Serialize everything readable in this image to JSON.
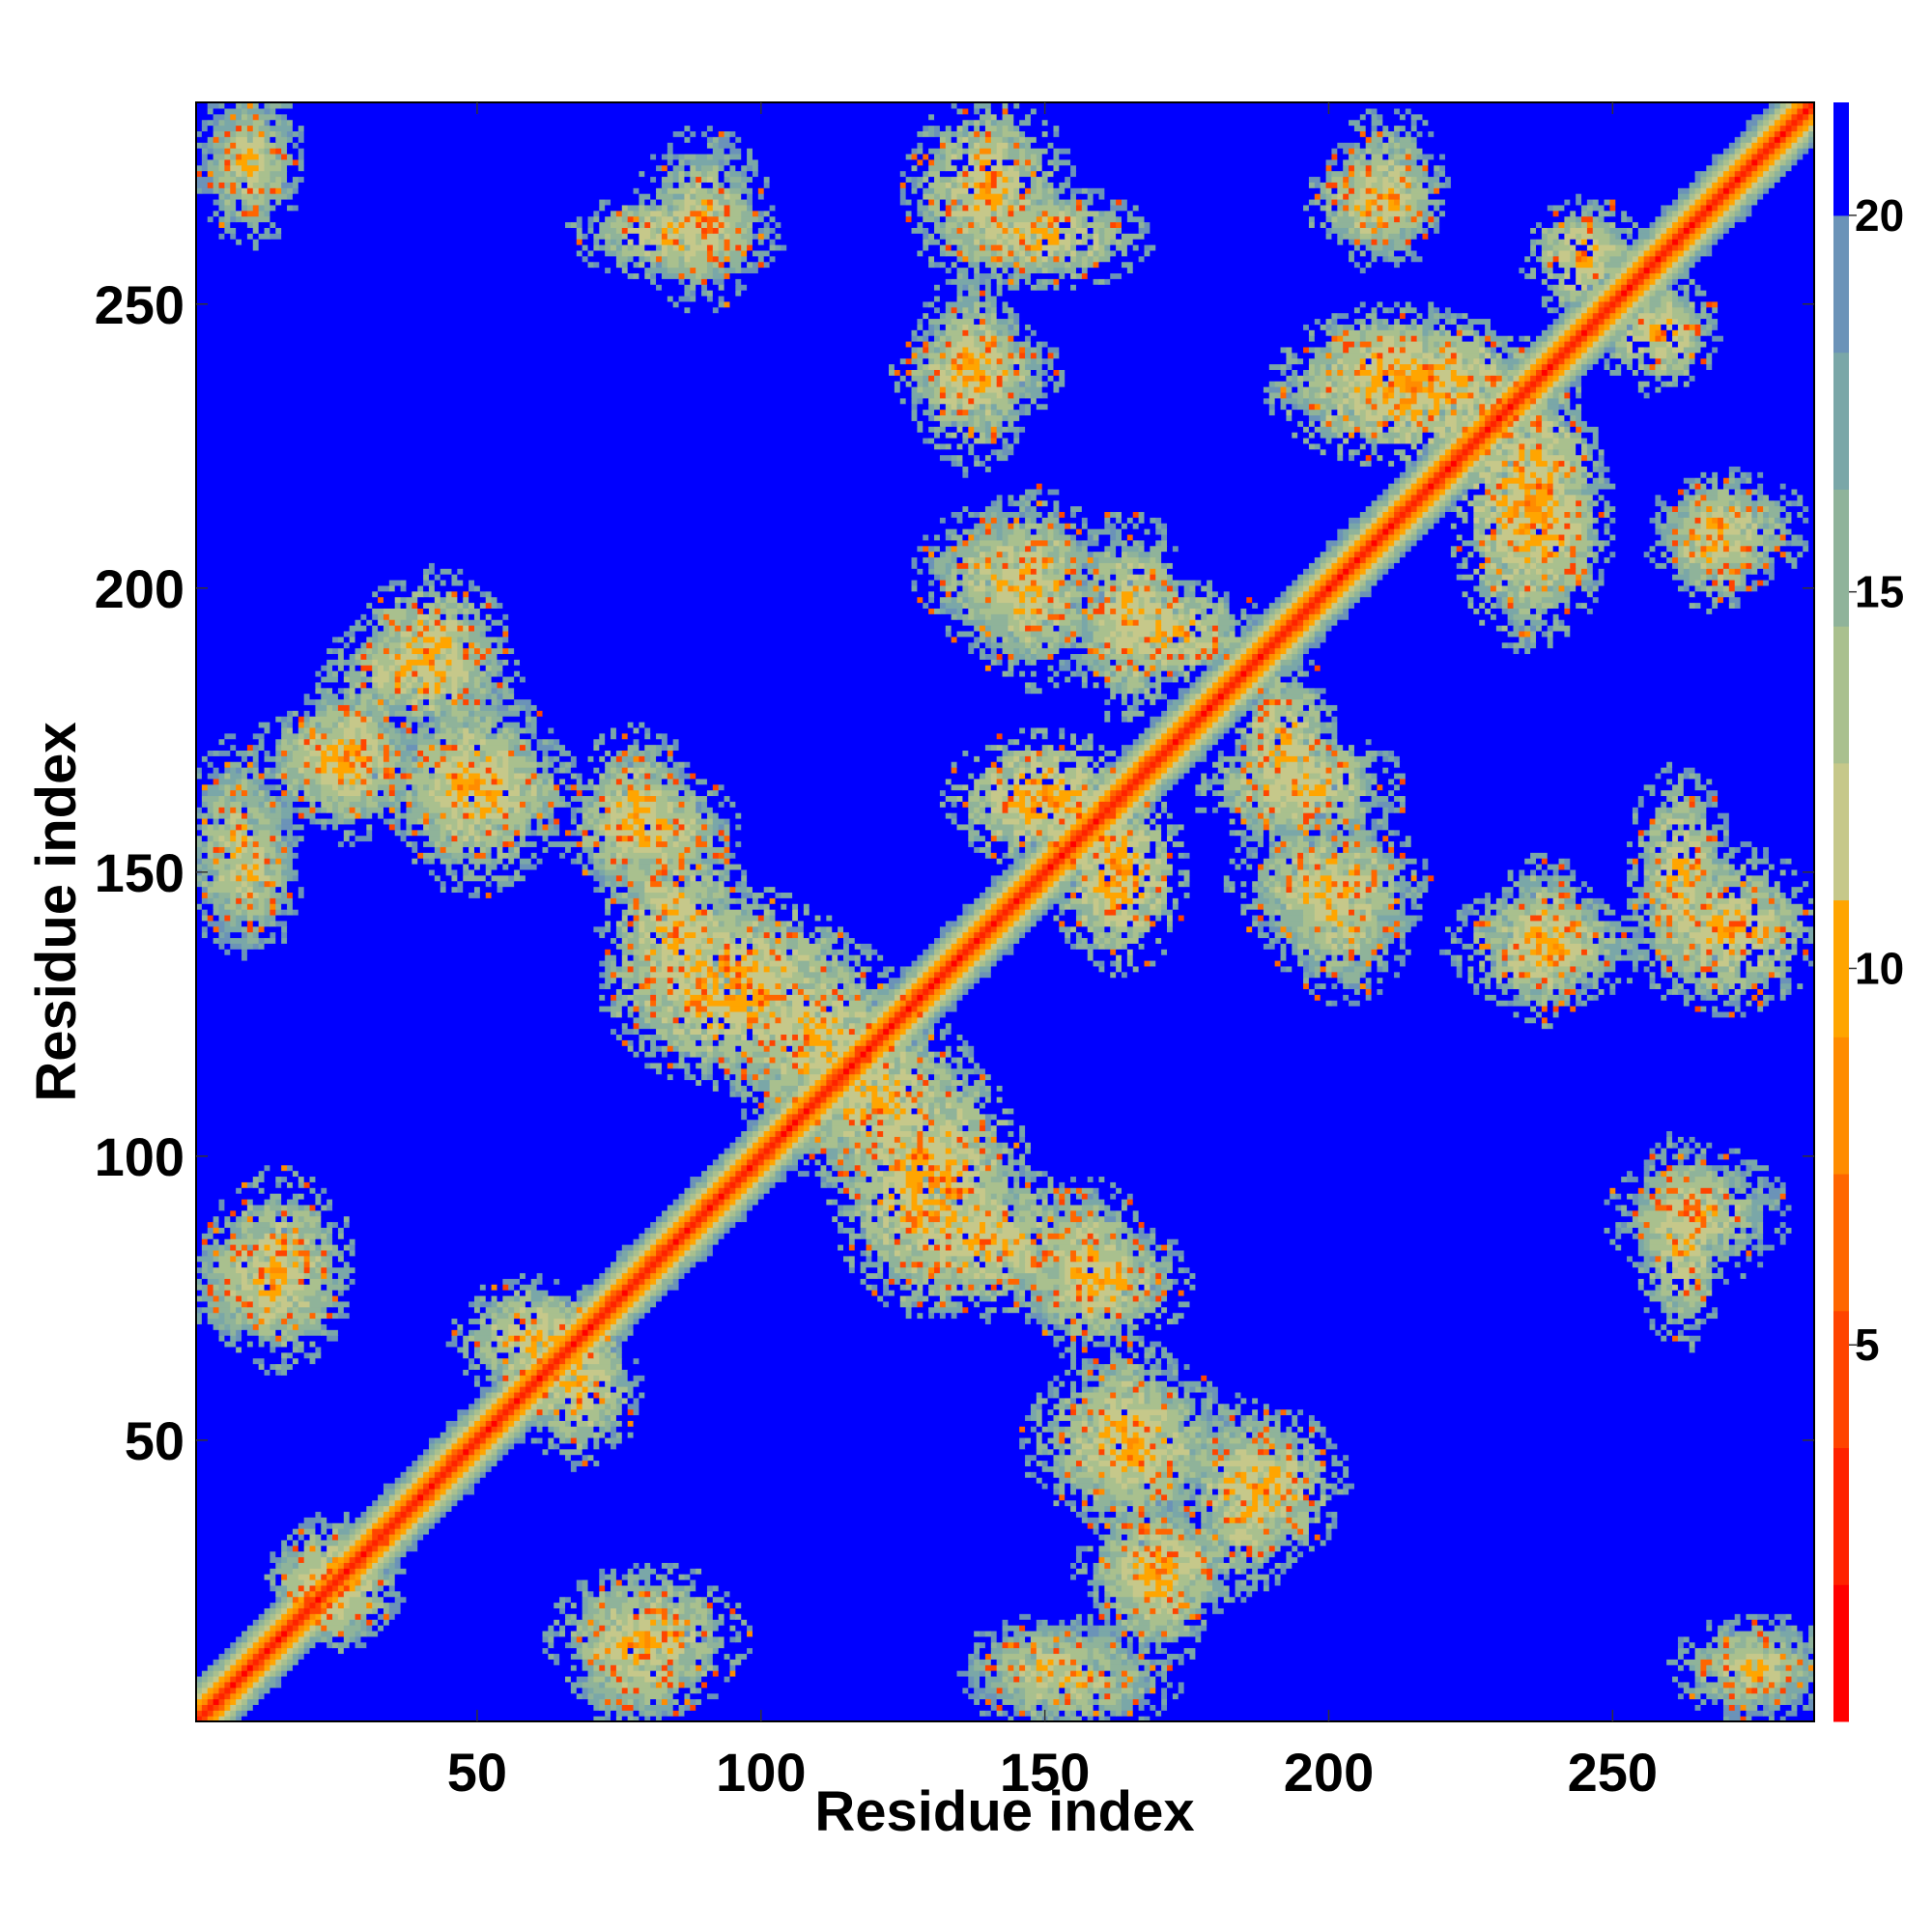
{
  "chart_data": {
    "type": "heatmap",
    "title": "",
    "xlabel": "Residue index",
    "ylabel": "Residue index",
    "xlim": [
      1,
      285
    ],
    "ylim": [
      1,
      285
    ],
    "x_ticks": [
      50,
      100,
      150,
      200,
      250
    ],
    "y_ticks": [
      50,
      100,
      150,
      200,
      250
    ],
    "colorbar": {
      "ticks": [
        5,
        10,
        15,
        20
      ],
      "range": [
        0,
        21.5
      ],
      "colors": [
        "#ff0000",
        "#ff2200",
        "#ff4400",
        "#ff6600",
        "#ff8c00",
        "#ffa500",
        "#c6c88a",
        "#a9c08e",
        "#8fb39a",
        "#7aa7a8",
        "#6b93b8",
        "#0000ff"
      ]
    },
    "cell_value_note": "Pairwise residue distance map, symmetric about the diagonal; values above 20 shown as saturated blue.",
    "diagonal_band": {
      "core_value": 3.8,
      "halo_width": 8
    },
    "contact_blobs": [
      {
        "x": 10,
        "y": 275,
        "w": 14,
        "h": 14,
        "v": 11
      },
      {
        "x": 85,
        "y": 262,
        "w": 28,
        "h": 12,
        "v": 10
      },
      {
        "x": 150,
        "y": 262,
        "w": 28,
        "h": 14,
        "v": 10
      },
      {
        "x": 138,
        "y": 238,
        "w": 22,
        "h": 14,
        "v": 10
      },
      {
        "x": 208,
        "y": 268,
        "w": 18,
        "h": 14,
        "v": 10
      },
      {
        "x": 245,
        "y": 258,
        "w": 16,
        "h": 16,
        "v": 10
      },
      {
        "x": 215,
        "y": 235,
        "w": 38,
        "h": 20,
        "v": 9
      },
      {
        "x": 238,
        "y": 212,
        "w": 18,
        "h": 30,
        "v": 10
      },
      {
        "x": 270,
        "y": 210,
        "w": 22,
        "h": 16,
        "v": 11
      },
      {
        "x": 142,
        "y": 202,
        "w": 22,
        "h": 20,
        "v": 11
      },
      {
        "x": 172,
        "y": 192,
        "w": 26,
        "h": 14,
        "v": 10
      },
      {
        "x": 40,
        "y": 185,
        "w": 26,
        "h": 16,
        "v": 10
      },
      {
        "x": 25,
        "y": 170,
        "w": 22,
        "h": 16,
        "v": 10
      },
      {
        "x": 50,
        "y": 165,
        "w": 28,
        "h": 16,
        "v": 10
      },
      {
        "x": 8,
        "y": 155,
        "w": 16,
        "h": 28,
        "v": 11
      },
      {
        "x": 80,
        "y": 158,
        "w": 24,
        "h": 16,
        "v": 10
      },
      {
        "x": 150,
        "y": 163,
        "w": 26,
        "h": 18,
        "v": 9
      },
      {
        "x": 195,
        "y": 165,
        "w": 28,
        "h": 16,
        "v": 10
      },
      {
        "x": 200,
        "y": 148,
        "w": 26,
        "h": 18,
        "v": 10
      },
      {
        "x": 238,
        "y": 137,
        "w": 26,
        "h": 16,
        "v": 10
      },
      {
        "x": 270,
        "y": 140,
        "w": 26,
        "h": 22,
        "v": 10
      },
      {
        "x": 95,
        "y": 130,
        "w": 34,
        "h": 26,
        "v": 9
      },
      {
        "x": 120,
        "y": 110,
        "w": 30,
        "h": 24,
        "v": 10
      },
      {
        "x": 140,
        "y": 85,
        "w": 32,
        "h": 20,
        "v": 10
      },
      {
        "x": 160,
        "y": 78,
        "w": 24,
        "h": 16,
        "v": 10
      },
      {
        "x": 12,
        "y": 78,
        "w": 22,
        "h": 18,
        "v": 11
      },
      {
        "x": 60,
        "y": 68,
        "w": 22,
        "h": 16,
        "v": 10
      },
      {
        "x": 265,
        "y": 90,
        "w": 24,
        "h": 18,
        "v": 11
      },
      {
        "x": 165,
        "y": 50,
        "w": 28,
        "h": 22,
        "v": 10
      },
      {
        "x": 190,
        "y": 42,
        "w": 20,
        "h": 20,
        "v": 10
      },
      {
        "x": 170,
        "y": 28,
        "w": 22,
        "h": 18,
        "v": 10
      },
      {
        "x": 80,
        "y": 15,
        "w": 26,
        "h": 20,
        "v": 10
      },
      {
        "x": 150,
        "y": 10,
        "w": 22,
        "h": 14,
        "v": 11
      },
      {
        "x": 275,
        "y": 10,
        "w": 22,
        "h": 14,
        "v": 11
      },
      {
        "x": 25,
        "y": 25,
        "w": 16,
        "h": 18,
        "v": 10
      }
    ]
  }
}
